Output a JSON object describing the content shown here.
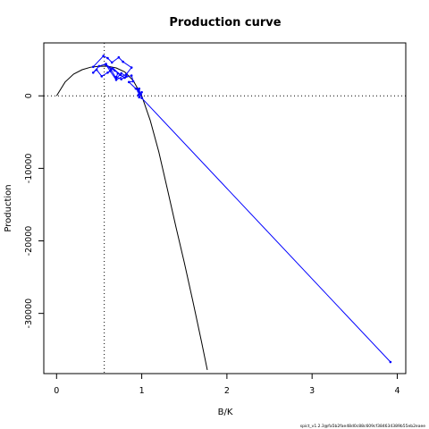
{
  "chart_data": {
    "type": "line",
    "title": "Production curve",
    "xlabel": "B/K",
    "ylabel": "Production",
    "xlim": [
      -0.15,
      4.1
    ],
    "ylim": [
      -38300,
      7300
    ],
    "x_ticks": [
      0,
      1,
      2,
      3,
      4
    ],
    "x_tick_labels": [
      "0",
      "1",
      "2",
      "3",
      "4"
    ],
    "y_ticks": [
      0,
      -10000,
      -20000,
      -30000
    ],
    "y_tick_labels": [
      "0",
      "-10000",
      "-20000",
      "-30000"
    ],
    "grid": false,
    "reference_lines": {
      "horizontal_y": 0,
      "vertical_x": 0.56
    },
    "series": [
      {
        "style": "black-curve",
        "color": "#000000",
        "x": [
          0,
          0.1,
          0.2,
          0.3,
          0.4,
          0.5,
          0.56,
          0.6,
          0.7,
          0.8,
          0.9,
          1.0,
          1.1,
          1.2,
          1.3,
          1.4,
          1.5,
          1.6,
          1.7,
          1.77
        ],
        "y": [
          0,
          1900,
          3000,
          3600,
          3950,
          4080,
          4100,
          4080,
          3850,
          3300,
          2100,
          0,
          -3400,
          -7700,
          -12800,
          -18000,
          -23000,
          -28300,
          -33800,
          -37800
        ]
      },
      {
        "style": "blue-trajectory",
        "color": "#0000ff",
        "x": [
          0.43,
          0.55,
          0.6,
          0.65,
          0.73,
          0.78,
          0.88,
          0.82,
          0.7,
          0.63,
          0.58,
          0.68,
          0.75,
          0.66,
          0.6,
          0.53,
          0.47,
          0.43,
          0.5,
          0.58,
          0.64,
          0.7,
          0.76,
          0.82,
          0.76,
          0.7,
          0.72,
          0.8,
          0.88,
          0.9,
          0.85,
          0.93,
          0.96,
          0.95,
          0.98,
          0.97,
          0.96,
          1.0,
          0.97,
          0.99,
          1.0,
          3.92
        ],
        "y": [
          4000,
          5500,
          5200,
          4600,
          5300,
          4700,
          3900,
          3000,
          2200,
          3400,
          4300,
          3500,
          2900,
          3800,
          3200,
          2700,
          3600,
          3200,
          4100,
          4400,
          3600,
          2400,
          3100,
          2700,
          2300,
          2600,
          3100,
          2500,
          2800,
          2000,
          1900,
          1000,
          600,
          900,
          300,
          1000,
          100,
          500,
          -200,
          200,
          -300,
          -36700
        ]
      }
    ]
  },
  "footer": {
    "text": "spict_v1.2.3@fa5b2fae48d0c88c609cf384634389b55eb2eaee"
  }
}
